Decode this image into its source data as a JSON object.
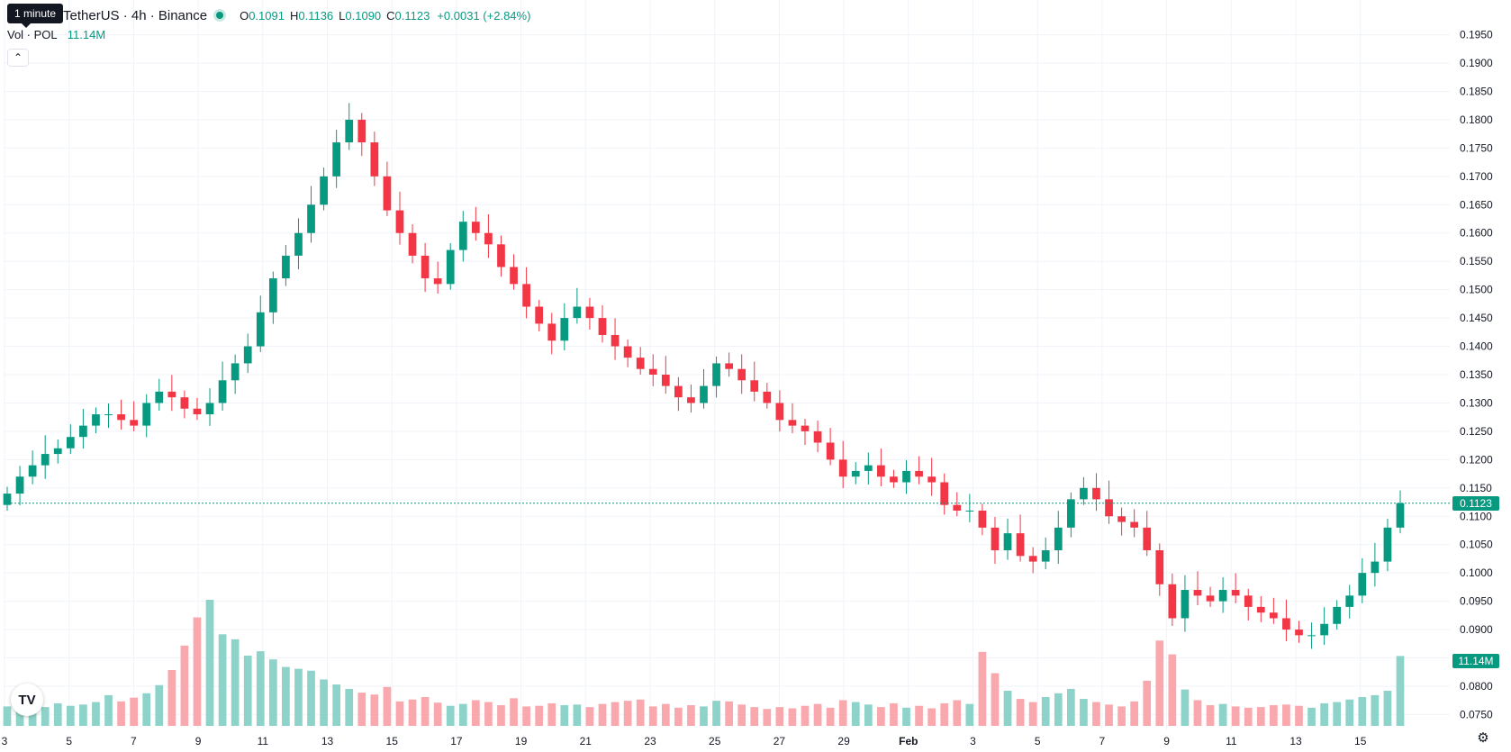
{
  "legend": {
    "title": "TetherUS · 4h · Binance",
    "open_key": "O",
    "open": "0.1091",
    "high_key": "H",
    "high": "0.1136",
    "low_key": "L",
    "low": "0.1090",
    "close_key": "C",
    "close": "0.1123",
    "change": "+0.0031 (+2.84%)"
  },
  "volume": {
    "label": "Vol · POL",
    "value": "11.14M"
  },
  "tooltip": "1 minute",
  "collapse_icon": "chevron-up-icon",
  "badges": {
    "last_price": "0.1123",
    "last_volume": "11.14M"
  },
  "colors": {
    "up": "#089981",
    "down": "#f23645",
    "up_volume": "#8ed3c9",
    "down_volume": "#f9a9ae",
    "grid": "#f0f3fa"
  },
  "chart_data": {
    "type": "candlestick",
    "title": "",
    "interval": "4h",
    "ylim": [
      0.073,
      0.197
    ],
    "y_ticks": [
      "0.0750",
      "0.0800",
      "0.0850",
      "0.0900",
      "0.0950",
      "0.1000",
      "0.1050",
      "0.1100",
      "0.1150",
      "0.1200",
      "0.1250",
      "0.1300",
      "0.1350",
      "0.1400",
      "0.1450",
      "0.1500",
      "0.1550",
      "0.1600",
      "0.1650",
      "0.1700",
      "0.1750",
      "0.1800",
      "0.1850",
      "0.1900",
      "0.1950"
    ],
    "x_ticks": [
      "3",
      "5",
      "7",
      "9",
      "11",
      "13",
      "15",
      "17",
      "19",
      "21",
      "23",
      "25",
      "27",
      "29",
      "Feb",
      "3",
      "5",
      "7",
      "9",
      "11",
      "13",
      "15"
    ],
    "x_tick_bold": [
      false,
      false,
      false,
      false,
      false,
      false,
      false,
      false,
      false,
      false,
      false,
      false,
      false,
      false,
      true,
      false,
      false,
      false,
      false,
      false,
      false,
      false
    ],
    "last_price": 0.1123,
    "closes": [
      0.114,
      0.117,
      0.119,
      0.121,
      0.122,
      0.124,
      0.126,
      0.128,
      0.128,
      0.127,
      0.126,
      0.13,
      0.132,
      0.131,
      0.129,
      0.128,
      0.13,
      0.134,
      0.137,
      0.14,
      0.146,
      0.152,
      0.156,
      0.16,
      0.165,
      0.17,
      0.176,
      0.18,
      0.176,
      0.17,
      0.164,
      0.16,
      0.156,
      0.152,
      0.151,
      0.157,
      0.162,
      0.16,
      0.158,
      0.154,
      0.151,
      0.147,
      0.144,
      0.141,
      0.145,
      0.147,
      0.145,
      0.142,
      0.14,
      0.138,
      0.136,
      0.135,
      0.133,
      0.131,
      0.13,
      0.133,
      0.137,
      0.136,
      0.134,
      0.132,
      0.13,
      0.127,
      0.126,
      0.125,
      0.123,
      0.12,
      0.117,
      0.118,
      0.119,
      0.117,
      0.116,
      0.118,
      0.117,
      0.116,
      0.112,
      0.111,
      0.111,
      0.108,
      0.104,
      0.107,
      0.103,
      0.102,
      0.104,
      0.108,
      0.113,
      0.115,
      0.113,
      0.11,
      0.109,
      0.108,
      0.104,
      0.098,
      0.092,
      0.097,
      0.096,
      0.095,
      0.097,
      0.096,
      0.094,
      0.093,
      0.092,
      0.09,
      0.089,
      0.089,
      0.091,
      0.094,
      0.096,
      0.1,
      0.102,
      0.108,
      0.1123
    ],
    "volumes": [
      3.1,
      2.8,
      2.9,
      3.0,
      3.6,
      3.2,
      3.4,
      3.8,
      4.9,
      3.9,
      4.5,
      5.2,
      6.5,
      8.9,
      12.8,
      17.3,
      20.1,
      14.6,
      13.8,
      11.2,
      11.9,
      10.6,
      9.4,
      9.1,
      8.8,
      7.4,
      6.6,
      5.9,
      5.3,
      5.0,
      6.2,
      3.9,
      4.2,
      4.6,
      3.7,
      3.2,
      3.5,
      4.1,
      3.8,
      3.3,
      4.4,
      3.1,
      3.2,
      3.6,
      3.3,
      3.4,
      3.0,
      3.5,
      3.8,
      4.0,
      4.2,
      3.1,
      3.5,
      2.9,
      3.3,
      3.1,
      4.0,
      3.9,
      3.4,
      3.0,
      2.7,
      3.0,
      2.8,
      3.2,
      3.5,
      2.9,
      4.1,
      3.8,
      3.4,
      3.0,
      3.6,
      2.9,
      3.2,
      2.8,
      3.6,
      4.1,
      3.5,
      11.8,
      8.4,
      5.6,
      4.3,
      3.8,
      4.6,
      5.2,
      5.9,
      4.3,
      3.8,
      3.4,
      3.1,
      3.9,
      7.2,
      13.6,
      11.4,
      5.8,
      4.1,
      3.3,
      3.5,
      3.1,
      2.9,
      3.0,
      3.3,
      3.4,
      3.2,
      2.9,
      3.6,
      3.8,
      4.2,
      4.6,
      4.9,
      5.6,
      11.14
    ]
  }
}
